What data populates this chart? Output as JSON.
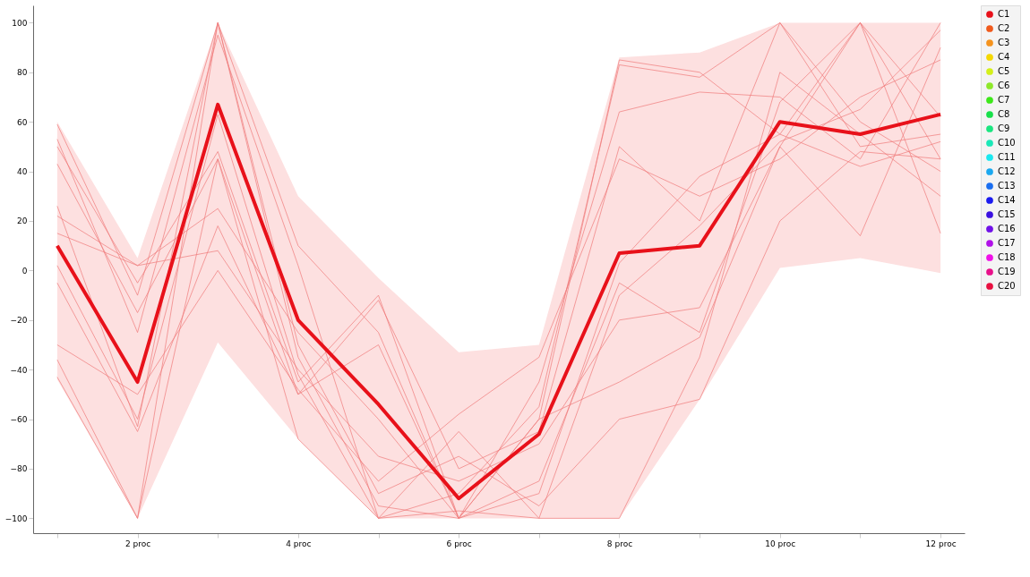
{
  "chart_data": {
    "type": "line",
    "categories": [
      null,
      "2 proc",
      null,
      "4 proc",
      null,
      "6 proc",
      null,
      "8 proc",
      null,
      "10 proc",
      null,
      "12 proc"
    ],
    "ylim": [
      -106,
      107
    ],
    "yticks": [
      -100,
      -80,
      -60,
      -40,
      -20,
      0,
      20,
      40,
      60,
      80,
      100
    ],
    "grid": false,
    "legend": "top right",
    "marker": "none",
    "line_style": "solid",
    "series": [
      {
        "name": "C1",
        "color": "#e8111a",
        "values": [
          10,
          -45,
          67,
          -20,
          -54,
          -92,
          -66,
          7,
          10,
          60,
          55,
          63
        ],
        "lower": [
          -44,
          -100,
          -29,
          -68,
          -100,
          -100,
          -100,
          -100,
          -52,
          1,
          5,
          -1
        ],
        "upper": [
          60,
          5,
          100,
          30,
          -3,
          -33,
          -30,
          86,
          88,
          100,
          100,
          100
        ]
      },
      {
        "name": "C2",
        "color": "#f05a1c",
        "values": [
          null,
          null,
          null,
          null,
          null,
          null,
          null,
          null,
          null,
          null,
          null,
          null
        ]
      },
      {
        "name": "C3",
        "color": "#f5931e",
        "values": [
          null,
          null,
          null,
          null,
          null,
          null,
          null,
          null,
          null,
          null,
          null,
          null
        ]
      },
      {
        "name": "C4",
        "color": "#f5d800",
        "values": [
          null,
          null,
          null,
          null,
          null,
          null,
          null,
          null,
          null,
          null,
          null,
          null
        ]
      },
      {
        "name": "C5",
        "color": "#d4f01a",
        "values": [
          null,
          null,
          null,
          null,
          null,
          null,
          null,
          null,
          null,
          null,
          null,
          null
        ]
      },
      {
        "name": "C6",
        "color": "#8ee82a",
        "values": [
          null,
          null,
          null,
          null,
          null,
          null,
          null,
          null,
          null,
          null,
          null,
          null
        ]
      },
      {
        "name": "C7",
        "color": "#3de81a",
        "values": [
          null,
          null,
          null,
          null,
          null,
          null,
          null,
          null,
          null,
          null,
          null,
          null
        ]
      },
      {
        "name": "C8",
        "color": "#18e04a",
        "values": [
          null,
          null,
          null,
          null,
          null,
          null,
          null,
          null,
          null,
          null,
          null,
          null
        ]
      },
      {
        "name": "C9",
        "color": "#1ae680",
        "values": [
          null,
          null,
          null,
          null,
          null,
          null,
          null,
          null,
          null,
          null,
          null,
          null
        ]
      },
      {
        "name": "C10",
        "color": "#1ae8b8",
        "values": [
          null,
          null,
          null,
          null,
          null,
          null,
          null,
          null,
          null,
          null,
          null,
          null
        ]
      },
      {
        "name": "C11",
        "color": "#1ae8f0",
        "values": [
          null,
          null,
          null,
          null,
          null,
          null,
          null,
          null,
          null,
          null,
          null,
          null
        ]
      },
      {
        "name": "C12",
        "color": "#1aa8f0",
        "values": [
          null,
          null,
          null,
          null,
          null,
          null,
          null,
          null,
          null,
          null,
          null,
          null
        ]
      },
      {
        "name": "C13",
        "color": "#1a6ef0",
        "values": [
          null,
          null,
          null,
          null,
          null,
          null,
          null,
          null,
          null,
          null,
          null,
          null
        ]
      },
      {
        "name": "C14",
        "color": "#1a1af0",
        "values": [
          null,
          null,
          null,
          null,
          null,
          null,
          null,
          null,
          null,
          null,
          null,
          null
        ]
      },
      {
        "name": "C15",
        "color": "#3a10e0",
        "values": [
          null,
          null,
          null,
          null,
          null,
          null,
          null,
          null,
          null,
          null,
          null,
          null
        ]
      },
      {
        "name": "C16",
        "color": "#7010e8",
        "values": [
          null,
          null,
          null,
          null,
          null,
          null,
          null,
          null,
          null,
          null,
          null,
          null
        ]
      },
      {
        "name": "C17",
        "color": "#b010e8",
        "values": [
          null,
          null,
          null,
          null,
          null,
          null,
          null,
          null,
          null,
          null,
          null,
          null
        ]
      },
      {
        "name": "C18",
        "color": "#f010e8",
        "values": [
          null,
          null,
          null,
          null,
          null,
          null,
          null,
          null,
          null,
          null,
          null,
          null
        ]
      },
      {
        "name": "C19",
        "color": "#e8108a",
        "values": [
          null,
          null,
          null,
          null,
          null,
          null,
          null,
          null,
          null,
          null,
          null,
          null
        ]
      },
      {
        "name": "C20",
        "color": "#e81040",
        "values": [
          null,
          null,
          null,
          null,
          null,
          null,
          null,
          null,
          null,
          null,
          null,
          null
        ]
      },
      {
        "color": "#f07a7a",
        "values": [
          59,
          -10,
          100,
          10,
          -25,
          -100,
          -60,
          85,
          80,
          55,
          100,
          45
        ]
      },
      {
        "color": "#f07a7a",
        "values": [
          53,
          -25,
          95,
          2,
          -100,
          -90,
          -55,
          83,
          78,
          100,
          60,
          40
        ]
      },
      {
        "color": "#f07a7a",
        "values": [
          50,
          -5,
          48,
          -45,
          -10,
          -100,
          -45,
          64,
          72,
          70,
          45,
          100
        ]
      },
      {
        "color": "#f07a7a",
        "values": [
          43,
          -17,
          45,
          -50,
          -12,
          -80,
          -65,
          50,
          20,
          100,
          50,
          55
        ]
      },
      {
        "color": "#f07a7a",
        "values": [
          26,
          -63,
          100,
          -35,
          -95,
          -100,
          -85,
          -5,
          -25,
          68,
          100,
          15
        ]
      },
      {
        "color": "#f07a7a",
        "values": [
          22,
          2,
          8,
          -40,
          -75,
          -85,
          -70,
          -20,
          -15,
          50,
          100,
          62
        ]
      },
      {
        "color": "#f07a7a",
        "values": [
          2,
          -60,
          63,
          -42,
          -100,
          -65,
          -100,
          -10,
          18,
          52,
          65,
          97
        ]
      },
      {
        "color": "#f07a7a",
        "values": [
          -5,
          -65,
          18,
          -50,
          -30,
          -100,
          -60,
          -45,
          -27,
          50,
          14,
          90
        ]
      },
      {
        "color": "#f07a7a",
        "values": [
          -36,
          -100,
          100,
          -30,
          -90,
          -75,
          -95,
          -60,
          -52,
          20,
          48,
          45
        ]
      },
      {
        "color": "#f07a7a",
        "values": [
          -43,
          -100,
          45,
          -68,
          -100,
          -97,
          -100,
          -100,
          -35,
          80,
          55,
          30
        ]
      },
      {
        "color": "#f07a7a",
        "values": [
          -30,
          -50,
          0,
          -48,
          -85,
          -58,
          -35,
          45,
          30,
          45,
          70,
          85
        ]
      },
      {
        "color": "#f07a7a",
        "values": [
          15,
          2,
          25,
          -25,
          -60,
          -100,
          -90,
          3,
          38,
          55,
          42,
          52
        ]
      }
    ]
  }
}
